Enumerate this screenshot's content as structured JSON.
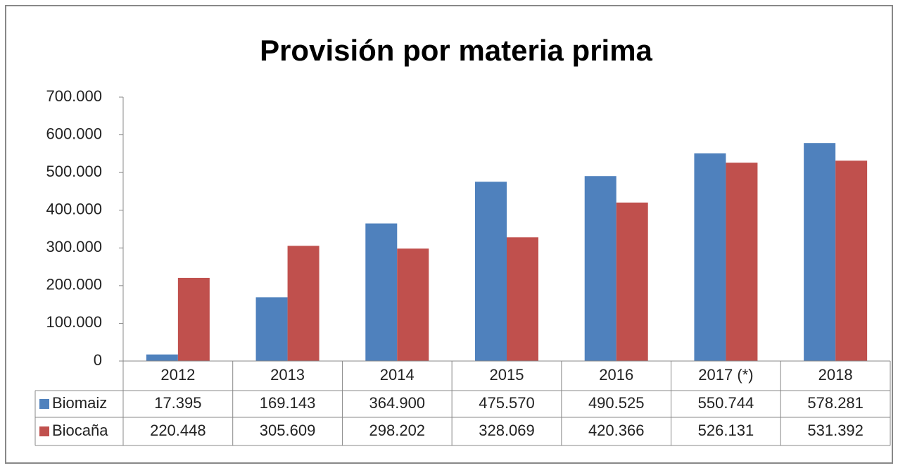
{
  "chart_data": {
    "type": "bar",
    "title": "Provisión por materia prima",
    "categories": [
      "2012",
      "2013",
      "2014",
      "2015",
      "2016",
      "2017 (*)",
      "2018"
    ],
    "series": [
      {
        "name": "Biomaiz",
        "color": "#4f81bd",
        "values": [
          17395,
          169143,
          364900,
          475570,
          490525,
          550744,
          578281
        ],
        "value_labels": [
          "17.395",
          "169.143",
          "364.900",
          "475.570",
          "490.525",
          "550.744",
          "578.281"
        ]
      },
      {
        "name": "Biocaña",
        "color": "#c0504d",
        "values": [
          220448,
          305609,
          298202,
          328069,
          420366,
          526131,
          531392
        ],
        "value_labels": [
          "220.448",
          "305.609",
          "298.202",
          "328.069",
          "420.366",
          "526.131",
          "531.392"
        ]
      }
    ],
    "ylim": [
      0,
      700000
    ],
    "yticks": [
      0,
      {
        "value": 100000,
        "label": "100.000"
      },
      {
        "value": 200000,
        "label": "200.000"
      },
      {
        "value": 300000,
        "label": "300.000"
      },
      {
        "value": 400000,
        "label": "400.000"
      },
      {
        "value": 500000,
        "label": "500.000"
      },
      {
        "value": 600000,
        "label": "600.000"
      },
      {
        "value": 700000,
        "label": "700.000"
      }
    ],
    "grid": false
  }
}
